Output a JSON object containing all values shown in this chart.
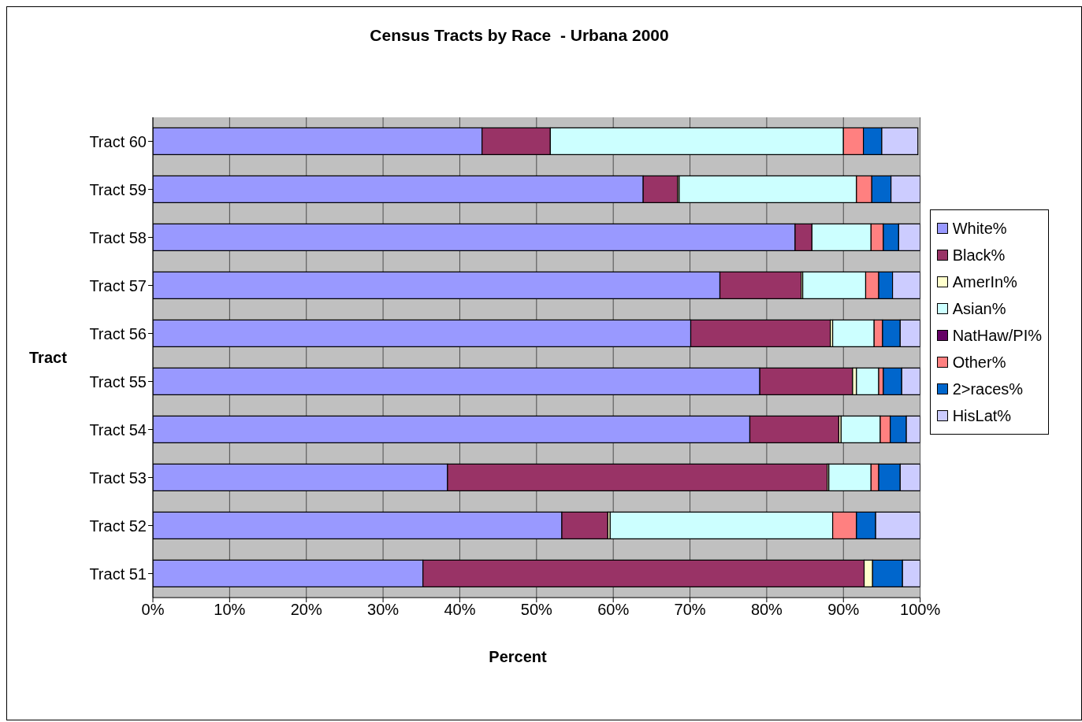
{
  "chart_data": {
    "type": "bar",
    "orientation": "horizontal",
    "stacked": true,
    "title": "Census Tracts by Race  - Urbana 2000",
    "xlabel": "Percent",
    "ylabel": "Tract",
    "categories": [
      "Tract 60",
      "Tract 59",
      "Tract 58",
      "Tract 57",
      "Tract 56",
      "Tract 55",
      "Tract 54",
      "Tract 53",
      "Tract 52",
      "Tract 51"
    ],
    "series": [
      {
        "name": "White%",
        "color": "#9999ff",
        "values": [
          42.9,
          63.9,
          83.7,
          73.9,
          70.1,
          79.1,
          77.8,
          38.4,
          53.3,
          35.2
        ]
      },
      {
        "name": "Black%",
        "color": "#993366",
        "values": [
          8.9,
          4.5,
          2.2,
          10.6,
          18.2,
          12.1,
          11.6,
          49.5,
          6.0,
          57.5
        ]
      },
      {
        "name": "AmerIn%",
        "color": "#ffffcc",
        "values": [
          null,
          0.2,
          null,
          0.2,
          0.3,
          0.5,
          0.3,
          0.2,
          0.3,
          1.1
        ]
      },
      {
        "name": "Asian%",
        "color": "#ccffff",
        "values": [
          38.2,
          23.1,
          7.7,
          8.2,
          5.4,
          2.9,
          5.1,
          5.5,
          29.0,
          0
        ]
      },
      {
        "name": "NatHaw/PI%",
        "color": "#660066",
        "values": [
          0,
          0,
          0,
          0,
          0,
          0,
          0,
          0,
          0,
          0
        ]
      },
      {
        "name": "Other%",
        "color": "#ff8080",
        "values": [
          2.6,
          2.0,
          1.6,
          1.7,
          1.1,
          0.6,
          1.3,
          1.0,
          3.1,
          0
        ]
      },
      {
        "name": "2>races%",
        "color": "#0066cc",
        "values": [
          2.4,
          2.5,
          2.0,
          1.8,
          2.3,
          2.4,
          2.1,
          2.8,
          2.5,
          3.9
        ]
      },
      {
        "name": "HisLat%",
        "color": "#ccccff",
        "values": [
          4.7,
          3.8,
          2.8,
          3.6,
          2.6,
          2.4,
          1.8,
          2.6,
          5.8,
          2.3
        ]
      }
    ],
    "xlim": [
      0,
      100
    ],
    "xticks": [
      {
        "value": 0,
        "label": "0%"
      },
      {
        "value": 10,
        "label": "10%"
      },
      {
        "value": 20,
        "label": "20%"
      },
      {
        "value": 30,
        "label": "30%"
      },
      {
        "value": 40,
        "label": "40%"
      },
      {
        "value": 50,
        "label": "50%"
      },
      {
        "value": 60,
        "label": "60%"
      },
      {
        "value": 70,
        "label": "70%"
      },
      {
        "value": 80,
        "label": "80%"
      },
      {
        "value": 90,
        "label": "90%"
      },
      {
        "value": 100,
        "label": "100%"
      }
    ],
    "grid": "x",
    "legend": "right"
  }
}
